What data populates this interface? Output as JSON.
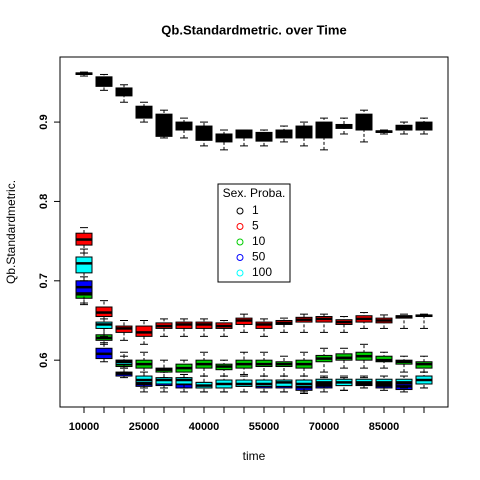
{
  "chart_data": {
    "type": "boxplot",
    "title": "Qb.Standardmetric. over Time",
    "x_label": "time",
    "y_label": "Qb.Standardmetric.",
    "legend_title": "Sex. Proba.",
    "categories": [
      "10000",
      null,
      null,
      "25000",
      null,
      null,
      "40000",
      null,
      null,
      "55000",
      null,
      null,
      "70000",
      null,
      null,
      "85000",
      null,
      null
    ],
    "ylim": [
      0.541,
      0.982
    ],
    "yticks": [
      0.6,
      0.7,
      0.8,
      0.9
    ],
    "series": [
      {
        "name": "1",
        "color": "#000000",
        "min": [
          0.958,
          0.94,
          0.925,
          0.9,
          0.88,
          0.88,
          0.87,
          0.865,
          0.87,
          0.87,
          0.875,
          0.87,
          0.865,
          0.885,
          0.875,
          0.885,
          0.885,
          0.885
        ],
        "q1": [
          0.96,
          0.945,
          0.933,
          0.905,
          0.882,
          0.89,
          0.877,
          0.875,
          0.88,
          0.876,
          0.88,
          0.88,
          0.88,
          0.892,
          0.89,
          0.887,
          0.89,
          0.89
        ],
        "median": [
          0.961,
          0.95,
          0.937,
          0.91,
          0.89,
          0.895,
          0.885,
          0.88,
          0.885,
          0.88,
          0.885,
          0.888,
          0.89,
          0.895,
          0.895,
          0.888,
          0.893,
          0.895
        ],
        "q3": [
          0.962,
          0.957,
          0.943,
          0.92,
          0.91,
          0.9,
          0.895,
          0.885,
          0.89,
          0.887,
          0.89,
          0.895,
          0.9,
          0.897,
          0.91,
          0.889,
          0.896,
          0.9
        ],
        "max": [
          0.963,
          0.96,
          0.947,
          0.925,
          0.915,
          0.905,
          0.9,
          0.89,
          0.89,
          0.89,
          0.895,
          0.9,
          0.905,
          0.905,
          0.915,
          0.89,
          0.9,
          0.905
        ]
      },
      {
        "name": "5",
        "color": "#ff0000",
        "min": [
          0.735,
          0.645,
          0.625,
          0.62,
          0.63,
          0.63,
          0.63,
          0.63,
          0.635,
          0.63,
          0.635,
          0.635,
          0.635,
          0.635,
          0.64,
          0.64,
          0.64,
          0.64
        ],
        "q1": [
          0.745,
          0.655,
          0.635,
          0.63,
          0.64,
          0.64,
          0.64,
          0.64,
          0.645,
          0.64,
          0.645,
          0.648,
          0.648,
          0.645,
          0.648,
          0.647,
          0.653,
          0.655
        ],
        "median": [
          0.752,
          0.66,
          0.64,
          0.635,
          0.643,
          0.645,
          0.645,
          0.643,
          0.65,
          0.645,
          0.647,
          0.651,
          0.652,
          0.648,
          0.652,
          0.65,
          0.655,
          0.656
        ],
        "q3": [
          0.76,
          0.667,
          0.643,
          0.643,
          0.647,
          0.648,
          0.648,
          0.647,
          0.653,
          0.648,
          0.65,
          0.654,
          0.655,
          0.651,
          0.656,
          0.653,
          0.656,
          0.657
        ],
        "max": [
          0.767,
          0.675,
          0.65,
          0.65,
          0.652,
          0.652,
          0.652,
          0.65,
          0.658,
          0.652,
          0.653,
          0.658,
          0.658,
          0.655,
          0.66,
          0.657,
          0.658,
          0.658
        ]
      },
      {
        "name": "10",
        "color": "#00cd00",
        "min": [
          0.672,
          0.62,
          0.585,
          0.58,
          0.578,
          0.578,
          0.58,
          0.58,
          0.582,
          0.58,
          0.58,
          0.58,
          0.585,
          0.59,
          0.59,
          0.59,
          0.585,
          0.585
        ],
        "q1": [
          0.678,
          0.625,
          0.592,
          0.59,
          0.585,
          0.585,
          0.59,
          0.588,
          0.59,
          0.592,
          0.592,
          0.59,
          0.598,
          0.6,
          0.6,
          0.598,
          0.595,
          0.59
        ],
        "median": [
          0.683,
          0.628,
          0.595,
          0.595,
          0.588,
          0.59,
          0.595,
          0.592,
          0.595,
          0.595,
          0.595,
          0.595,
          0.602,
          0.603,
          0.605,
          0.6,
          0.598,
          0.595
        ],
        "q3": [
          0.69,
          0.632,
          0.6,
          0.6,
          0.59,
          0.595,
          0.6,
          0.595,
          0.6,
          0.6,
          0.598,
          0.6,
          0.606,
          0.608,
          0.61,
          0.605,
          0.6,
          0.598
        ],
        "max": [
          0.695,
          0.64,
          0.61,
          0.61,
          0.6,
          0.6,
          0.61,
          0.6,
          0.61,
          0.61,
          0.605,
          0.61,
          0.615,
          0.615,
          0.62,
          0.61,
          0.605,
          0.605
        ]
      },
      {
        "name": "50",
        "color": "#0000ff",
        "min": [
          0.67,
          0.598,
          0.578,
          0.56,
          0.56,
          0.56,
          0.56,
          0.56,
          0.56,
          0.56,
          0.56,
          0.558,
          0.56,
          0.562,
          0.565,
          0.562,
          0.56,
          0.565
        ],
        "q1": [
          0.685,
          0.602,
          0.58,
          0.567,
          0.568,
          0.565,
          0.565,
          0.565,
          0.567,
          0.565,
          0.565,
          0.562,
          0.565,
          0.568,
          0.568,
          0.565,
          0.563,
          0.57
        ],
        "median": [
          0.692,
          0.608,
          0.583,
          0.57,
          0.572,
          0.57,
          0.568,
          0.57,
          0.57,
          0.568,
          0.568,
          0.566,
          0.568,
          0.57,
          0.57,
          0.568,
          0.567,
          0.575
        ],
        "q3": [
          0.7,
          0.615,
          0.585,
          0.575,
          0.577,
          0.575,
          0.572,
          0.575,
          0.573,
          0.572,
          0.572,
          0.57,
          0.572,
          0.573,
          0.573,
          0.57,
          0.57,
          0.58
        ],
        "max": [
          0.705,
          0.622,
          0.59,
          0.58,
          0.585,
          0.582,
          0.58,
          0.58,
          0.58,
          0.58,
          0.58,
          0.575,
          0.578,
          0.578,
          0.578,
          0.575,
          0.575,
          0.585
        ]
      },
      {
        "name": "100",
        "color": "#00ffff",
        "min": [
          0.7,
          0.63,
          0.59,
          0.565,
          0.565,
          0.565,
          0.56,
          0.56,
          0.56,
          0.56,
          0.56,
          0.56,
          0.565,
          0.562,
          0.565,
          0.565,
          0.565,
          0.565
        ],
        "q1": [
          0.71,
          0.64,
          0.595,
          0.572,
          0.57,
          0.57,
          0.565,
          0.565,
          0.567,
          0.567,
          0.567,
          0.567,
          0.57,
          0.568,
          0.57,
          0.57,
          0.57,
          0.57
        ],
        "median": [
          0.722,
          0.645,
          0.598,
          0.575,
          0.575,
          0.575,
          0.568,
          0.57,
          0.57,
          0.57,
          0.572,
          0.57,
          0.572,
          0.572,
          0.572,
          0.572,
          0.572,
          0.575
        ],
        "q3": [
          0.73,
          0.648,
          0.6,
          0.58,
          0.578,
          0.578,
          0.572,
          0.575,
          0.575,
          0.575,
          0.575,
          0.575,
          0.576,
          0.576,
          0.576,
          0.576,
          0.576,
          0.58
        ],
        "max": [
          0.74,
          0.652,
          0.605,
          0.585,
          0.585,
          0.582,
          0.58,
          0.58,
          0.58,
          0.58,
          0.58,
          0.58,
          0.58,
          0.58,
          0.58,
          0.58,
          0.58,
          0.585
        ]
      }
    ]
  }
}
